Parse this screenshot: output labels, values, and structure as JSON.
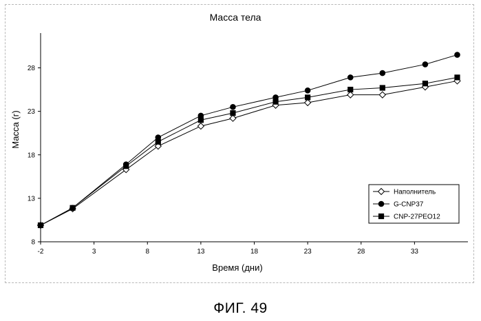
{
  "figure_caption": "ФИГ. 49",
  "chart_data": {
    "type": "line",
    "title": "Масса тела",
    "xlabel": "Время (дни)",
    "ylabel": "Масса (г)",
    "xlim": [
      -2,
      38
    ],
    "ylim": [
      8,
      32
    ],
    "xticks": [
      -2,
      3,
      8,
      13,
      18,
      23,
      28,
      33
    ],
    "yticks": [
      8,
      13,
      18,
      23,
      28
    ],
    "grid": false,
    "legend_position": "bottom-right",
    "series": [
      {
        "name": "Наполнитель",
        "marker": "diamond-open",
        "color": "#000000",
        "x": [
          -2,
          1,
          6,
          9,
          13,
          16,
          20,
          23,
          27,
          30,
          34,
          37
        ],
        "y": [
          9.9,
          11.8,
          16.3,
          19.0,
          21.3,
          22.2,
          23.7,
          24.0,
          24.9,
          24.9,
          25.8,
          26.5
        ]
      },
      {
        "name": "G-CNP37",
        "marker": "circle",
        "color": "#000000",
        "x": [
          -2,
          1,
          6,
          9,
          13,
          16,
          20,
          23,
          27,
          30,
          34,
          37
        ],
        "y": [
          9.9,
          11.9,
          16.9,
          20.0,
          22.5,
          23.5,
          24.6,
          25.4,
          26.9,
          27.4,
          28.4,
          29.5
        ]
      },
      {
        "name": "CNP-27PEO12",
        "marker": "square",
        "color": "#000000",
        "x": [
          -2,
          1,
          6,
          9,
          13,
          16,
          20,
          23,
          27,
          30,
          34,
          37
        ],
        "y": [
          9.9,
          11.9,
          16.7,
          19.5,
          22.0,
          22.8,
          24.1,
          24.6,
          25.5,
          25.7,
          26.2,
          26.9
        ]
      }
    ]
  }
}
